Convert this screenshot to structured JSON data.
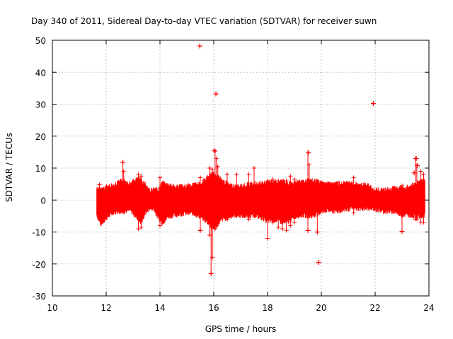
{
  "chart_data": {
    "type": "scatter",
    "title": "Day 340 of 2011, Sidereal Day-to-day VTEC variation (SDTVAR) for receiver suwn",
    "xlabel": "GPS time / hours",
    "ylabel": "SDTVAR / TECUs",
    "xlim": [
      10,
      24
    ],
    "ylim": [
      -30,
      50
    ],
    "xticks": [
      "10",
      "12",
      "14",
      "16",
      "18",
      "20",
      "22",
      "24"
    ],
    "yticks": [
      "50",
      "40",
      "30",
      "20",
      "10",
      "0",
      "-10",
      "-20",
      "-30"
    ],
    "grid": true,
    "series": [
      {
        "name": "SDTVAR",
        "color": "#ff0000",
        "marker": "+",
        "band": [
          [
            11.65,
            -5.5,
            4.5
          ],
          [
            11.8,
            -8.5,
            4.0
          ],
          [
            12.0,
            -6.5,
            5.0
          ],
          [
            12.3,
            -4.5,
            5.5
          ],
          [
            12.6,
            -4.5,
            7.0
          ],
          [
            12.9,
            -4.0,
            6.0
          ],
          [
            13.15,
            -6.5,
            7.5
          ],
          [
            13.3,
            -8.0,
            7.0
          ],
          [
            13.45,
            -5.0,
            6.0
          ],
          [
            13.6,
            -3.5,
            4.0
          ],
          [
            13.75,
            -3.5,
            4.0
          ],
          [
            13.95,
            -6.5,
            4.0
          ],
          [
            14.1,
            -8.0,
            6.5
          ],
          [
            14.3,
            -6.0,
            5.5
          ],
          [
            14.6,
            -5.5,
            5.0
          ],
          [
            14.9,
            -5.0,
            5.0
          ],
          [
            15.2,
            -5.0,
            5.5
          ],
          [
            15.5,
            -6.0,
            6.0
          ],
          [
            15.8,
            -8.0,
            8.0
          ],
          [
            15.95,
            -10.0,
            9.0
          ],
          [
            16.1,
            -9.0,
            9.0
          ],
          [
            16.3,
            -7.0,
            7.0
          ],
          [
            16.6,
            -6.0,
            5.5
          ],
          [
            16.9,
            -5.5,
            5.0
          ],
          [
            17.2,
            -6.0,
            5.5
          ],
          [
            17.5,
            -5.5,
            6.0
          ],
          [
            17.8,
            -6.5,
            6.0
          ],
          [
            18.0,
            -7.5,
            6.5
          ],
          [
            18.3,
            -7.0,
            6.5
          ],
          [
            18.6,
            -8.0,
            6.5
          ],
          [
            18.8,
            -7.5,
            6.0
          ],
          [
            19.0,
            -6.0,
            6.5
          ],
          [
            19.3,
            -5.5,
            6.5
          ],
          [
            19.6,
            -6.0,
            7.0
          ],
          [
            19.9,
            -5.0,
            6.5
          ],
          [
            20.2,
            -4.0,
            6.0
          ],
          [
            20.5,
            -4.5,
            6.0
          ],
          [
            20.8,
            -4.0,
            6.0
          ],
          [
            21.1,
            -3.5,
            6.0
          ],
          [
            21.4,
            -3.5,
            5.5
          ],
          [
            21.7,
            -3.5,
            5.5
          ],
          [
            21.9,
            -3.5,
            4.5
          ],
          [
            22.1,
            -4.0,
            4.0
          ],
          [
            22.4,
            -4.5,
            4.0
          ],
          [
            22.7,
            -4.5,
            4.5
          ],
          [
            23.0,
            -5.5,
            4.5
          ],
          [
            23.3,
            -5.5,
            5.0
          ],
          [
            23.5,
            -6.0,
            6.0
          ],
          [
            23.7,
            -6.0,
            6.5
          ],
          [
            23.85,
            -5.5,
            7.0
          ]
        ],
        "spikes": [
          [
            11.75,
            -6.0,
            4.8
          ],
          [
            12.62,
            -3.0,
            11.8
          ],
          [
            12.65,
            0.5,
            9.0
          ],
          [
            13.2,
            -9.0,
            8.0
          ],
          [
            13.3,
            -8.5,
            7.5
          ],
          [
            14.0,
            -8.0,
            7.0
          ],
          [
            15.5,
            -9.5,
            7.0
          ],
          [
            15.85,
            -11.0,
            10.0
          ],
          [
            15.9,
            -23.0,
            8.0
          ],
          [
            15.95,
            -18.0,
            9.5
          ],
          [
            16.05,
            -9.0,
            15.3
          ],
          [
            16.1,
            -8.0,
            13.0
          ],
          [
            16.15,
            -7.0,
            10.5
          ],
          [
            16.5,
            -6.0,
            8.0
          ],
          [
            16.85,
            -5.0,
            8.0
          ],
          [
            17.3,
            -6.0,
            8.0
          ],
          [
            17.5,
            -5.0,
            10.0
          ],
          [
            18.0,
            -12.0,
            6.0
          ],
          [
            18.2,
            -7.0,
            6.5
          ],
          [
            18.4,
            -8.5,
            6.0
          ],
          [
            18.55,
            -9.0,
            6.0
          ],
          [
            18.7,
            -9.5,
            6.0
          ],
          [
            18.85,
            -8.0,
            7.5
          ],
          [
            19.0,
            -7.0,
            6.5
          ],
          [
            19.5,
            -9.5,
            14.8
          ],
          [
            19.55,
            -5.0,
            11.0
          ],
          [
            19.85,
            -10.0,
            6.0
          ],
          [
            21.2,
            -4.0,
            7.0
          ],
          [
            23.0,
            -9.8,
            4.5
          ],
          [
            23.5,
            -6.0,
            13.0
          ],
          [
            23.55,
            -6.0,
            10.8
          ],
          [
            23.7,
            -7.0,
            9.0
          ],
          [
            23.8,
            -7.0,
            8.0
          ]
        ],
        "outliers": [
          [
            15.48,
            48.2
          ],
          [
            16.08,
            33.2
          ],
          [
            21.93,
            30.2
          ],
          [
            16.02,
            15.5
          ],
          [
            19.52,
            14.8
          ],
          [
            23.53,
            13.0
          ],
          [
            23.57,
            10.8
          ],
          [
            23.45,
            8.5
          ],
          [
            19.9,
            -19.5
          ],
          [
            15.9,
            -23.0
          ],
          [
            15.5,
            -9.5
          ],
          [
            19.5,
            -9.5
          ],
          [
            23.0,
            -9.8
          ],
          [
            19.85,
            -10.0
          ],
          [
            12.62,
            11.8
          ]
        ]
      }
    ]
  }
}
